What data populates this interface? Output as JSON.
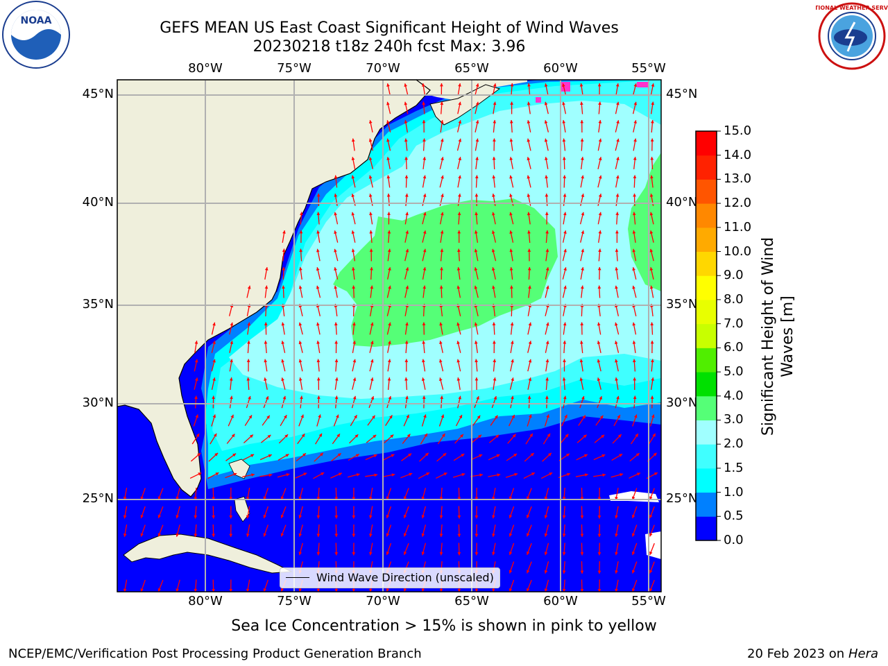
{
  "title_line1": "GEFS MEAN US East Coast Significant Height of Wind Waves",
  "title_line2": "20230218 t18z 240h fcst   Max: 3.96",
  "lon_ticks": [
    "80°W",
    "75°W",
    "70°W",
    "65°W",
    "60°W",
    "55°W"
  ],
  "lat_ticks": [
    "45°N",
    "40°N",
    "35°N",
    "30°N",
    "25°N"
  ],
  "colorbar": {
    "label": "Significant Height of Wind Waves [m]",
    "ticks": [
      "0.0",
      "0.5",
      "1.0",
      "1.5",
      "2.0",
      "3.0",
      "4.0",
      "5.0",
      "6.0",
      "7.0",
      "8.0",
      "9.0",
      "10.0",
      "11.0",
      "12.0",
      "13.0",
      "14.0",
      "15.0"
    ],
    "colors": [
      "#0000ff",
      "#0080ff",
      "#00ffff",
      "#40ffff",
      "#a0ffff",
      "#55ff77",
      "#00e000",
      "#50ee00",
      "#c8ff00",
      "#e8ff00",
      "#ffff00",
      "#ffd700",
      "#ffaa00",
      "#ff8800",
      "#ff5500",
      "#ff2200",
      "#ff0000"
    ]
  },
  "colors": {
    "land": "#efefdc",
    "grid": "#b0b0b0",
    "arrow": "#ff0000",
    "sea_ice": "#ff33cc"
  },
  "legend_label": "Wind Wave Direction (unscaled)",
  "caption": "Sea Ice Concentration > 15% is shown in pink to yellow",
  "footer_left": "NCEP/EMC/Verification Post Processing Product Generation Branch",
  "footer_date": "20 Feb 2023 on",
  "footer_machine": "Hera",
  "logos": {
    "noaa_text": "NOAA",
    "nws_ring_text": "NATIONAL WEATHER SERVICE"
  }
}
